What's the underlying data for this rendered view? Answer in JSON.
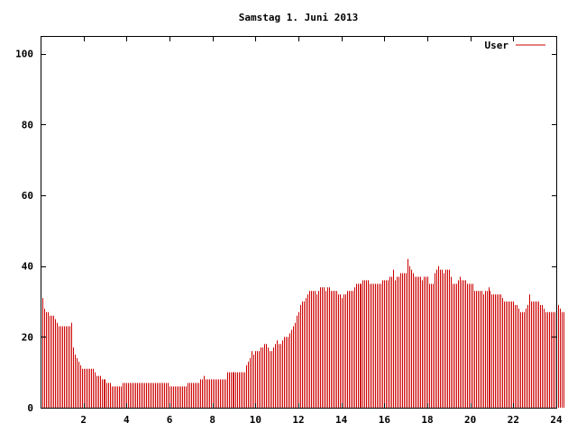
{
  "chart_data": {
    "type": "bar",
    "title": "Samstag 1. Juni 2013",
    "xlabel": "",
    "ylabel": "",
    "xlim": [
      0,
      24
    ],
    "ylim": [
      0,
      105
    ],
    "x_ticks": [
      "2",
      "4",
      "6",
      "8",
      "10",
      "12",
      "14",
      "16",
      "18",
      "20",
      "22",
      "24"
    ],
    "y_ticks": [
      "0",
      "20",
      "40",
      "60",
      "80",
      "100"
    ],
    "grid": false,
    "legend_position": "top-right",
    "bar_color": "#cc0000",
    "series": [
      {
        "name": "User",
        "x_start": 0,
        "x_step": 0.08333,
        "values": [
          31,
          31,
          28,
          27,
          27,
          26,
          26,
          26,
          25,
          24,
          23,
          23,
          23,
          23,
          23,
          23,
          23,
          24,
          17,
          15,
          14,
          13,
          12,
          11,
          11,
          11,
          11,
          11,
          11,
          11,
          10,
          9,
          9,
          9,
          8,
          8,
          8,
          7,
          7,
          7,
          6,
          6,
          6,
          6,
          6,
          6,
          7,
          7,
          7,
          7,
          7,
          7,
          7,
          7,
          7,
          7,
          7,
          7,
          7,
          7,
          7,
          7,
          7,
          7,
          7,
          7,
          7,
          7,
          7,
          7,
          7,
          7,
          6,
          6,
          6,
          6,
          6,
          6,
          6,
          6,
          6,
          6,
          7,
          7,
          7,
          7,
          7,
          7,
          7,
          8,
          8,
          9,
          8,
          8,
          8,
          8,
          8,
          8,
          8,
          8,
          8,
          8,
          8,
          8,
          10,
          10,
          10,
          10,
          10,
          10,
          10,
          10,
          10,
          10,
          10,
          12,
          13,
          14,
          16,
          15,
          16,
          16,
          16,
          17,
          17,
          18,
          18,
          17,
          16,
          16,
          17,
          18,
          19,
          18,
          18,
          19,
          20,
          20,
          20,
          21,
          22,
          23,
          24,
          26,
          27,
          29,
          30,
          30,
          31,
          32,
          33,
          33,
          33,
          33,
          32,
          33,
          34,
          34,
          34,
          33,
          34,
          34,
          33,
          33,
          33,
          33,
          32,
          32,
          31,
          32,
          32,
          33,
          33,
          33,
          33,
          34,
          35,
          35,
          35,
          35,
          36,
          36,
          36,
          36,
          35,
          35,
          35,
          35,
          35,
          35,
          35,
          36,
          36,
          36,
          36,
          37,
          37,
          39,
          36,
          37,
          37,
          38,
          38,
          38,
          38,
          42,
          40,
          39,
          38,
          37,
          37,
          37,
          37,
          36,
          37,
          37,
          37,
          35,
          35,
          35,
          38,
          39,
          40,
          39,
          39,
          38,
          39,
          39,
          39,
          37,
          35,
          35,
          35,
          36,
          37,
          36,
          36,
          36,
          35,
          35,
          35,
          35,
          33,
          33,
          33,
          33,
          33,
          32,
          33,
          33,
          34,
          33,
          32,
          32,
          32,
          32,
          32,
          32,
          31,
          30,
          30,
          30,
          30,
          30,
          30,
          29,
          29,
          28,
          27,
          27,
          27,
          28,
          29,
          32,
          30,
          30,
          30,
          30,
          30,
          29,
          29,
          28,
          27,
          27,
          27,
          27,
          27,
          27,
          27,
          29,
          28,
          27,
          27
        ]
      }
    ]
  }
}
